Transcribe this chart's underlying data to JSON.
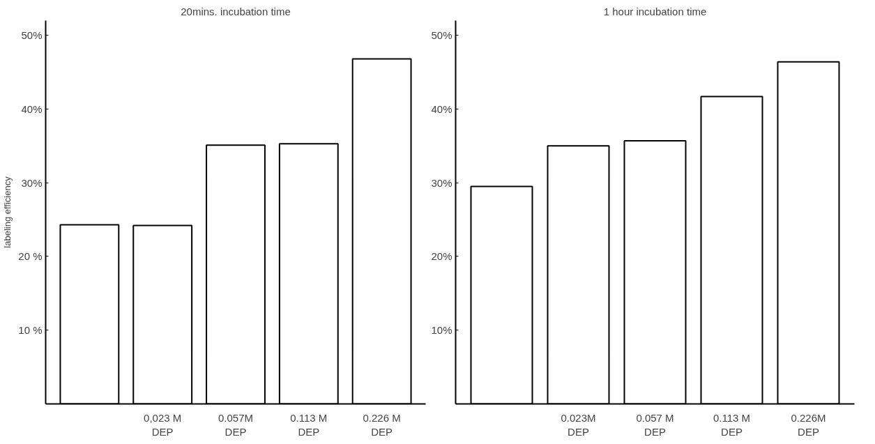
{
  "chart_data": [
    {
      "type": "bar",
      "title": "20mins. incubation time",
      "ylabel": "labeling efficiency",
      "categories": [
        null,
        "0,023 M\nDEP",
        "0.057M\nDEP",
        "0.113 M\nDEP",
        "0.226 M\nDEP"
      ],
      "values": [
        24.3,
        24.2,
        35.1,
        35.3,
        46.8
      ],
      "color": "#ffffff",
      "ylim": [
        0,
        52
      ],
      "yticks": [
        {
          "value": 10,
          "label": "10 %"
        },
        {
          "value": 20,
          "label": "20 %"
        },
        {
          "value": 30,
          "label": "30%"
        },
        {
          "value": 40,
          "label": "40%"
        },
        {
          "value": 50,
          "label": "50%"
        }
      ],
      "grid": false
    },
    {
      "type": "bar",
      "title": "1 hour incubation time",
      "categories": [
        null,
        "0.023M\nDEP",
        "0.057 M\nDEP",
        "0.113 M\nDEP",
        "0.226M\nDEP"
      ],
      "values": [
        29.5,
        35.0,
        35.7,
        41.7,
        46.4
      ],
      "color": "#ffffff",
      "ylim": [
        0,
        52
      ],
      "yticks": [
        {
          "value": 10,
          "label": "10%"
        },
        {
          "value": 20,
          "label": "20%"
        },
        {
          "value": 30,
          "label": "30%"
        },
        {
          "value": 40,
          "label": "40%"
        },
        {
          "value": 50,
          "label": "50%"
        }
      ],
      "grid": false
    }
  ]
}
